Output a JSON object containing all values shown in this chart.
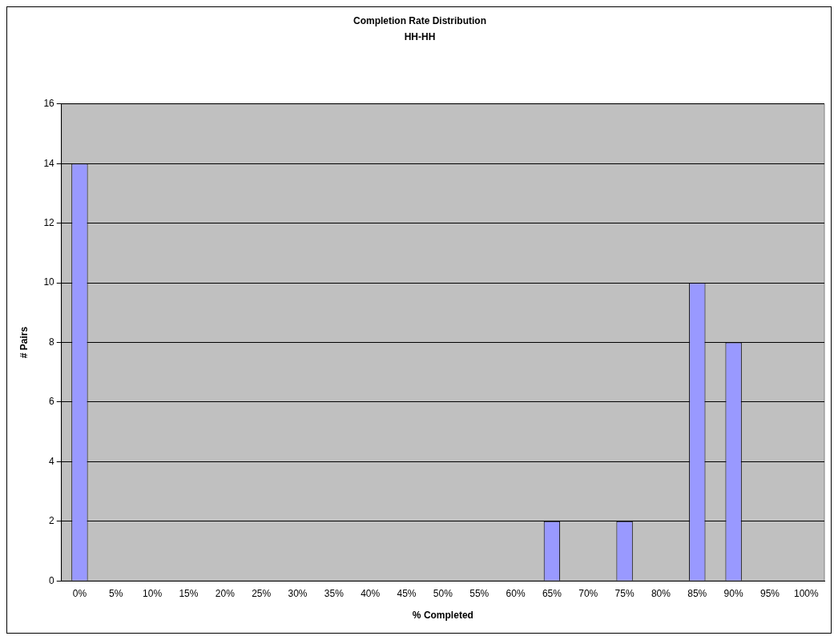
{
  "chart_data": {
    "type": "bar",
    "title": "Completion Rate Distribution",
    "subtitle": "HH-HH",
    "xlabel": "% Completed",
    "ylabel": "# Pairs",
    "categories": [
      "0%",
      "5%",
      "10%",
      "15%",
      "20%",
      "25%",
      "30%",
      "35%",
      "40%",
      "45%",
      "50%",
      "55%",
      "60%",
      "65%",
      "70%",
      "75%",
      "80%",
      "85%",
      "90%",
      "95%",
      "100%"
    ],
    "values": [
      14,
      0,
      0,
      0,
      0,
      0,
      0,
      0,
      0,
      0,
      0,
      0,
      0,
      2,
      0,
      2,
      0,
      10,
      8,
      0,
      0
    ],
    "color": "#9999ff",
    "ylim": [
      0,
      16
    ],
    "yticks": [
      0,
      2,
      4,
      6,
      8,
      10,
      12,
      14,
      16
    ],
    "grid": "y",
    "legend": false
  }
}
